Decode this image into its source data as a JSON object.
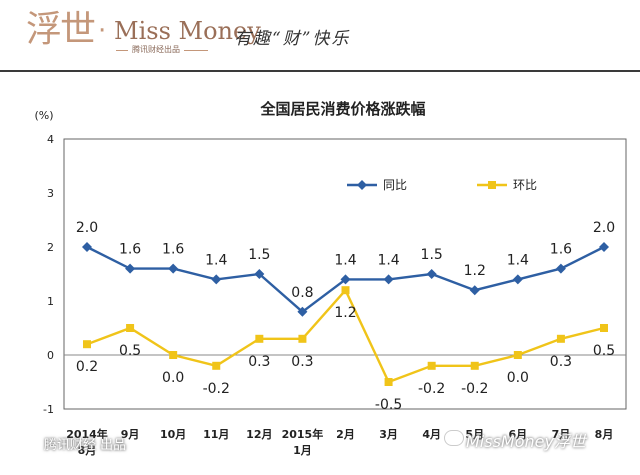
{
  "header": {
    "logo_cn": "浮世",
    "logo_dot": "·",
    "logo_en": "Miss Money",
    "logo_sub": "腾讯财经出品",
    "slogan": "有趣“财”快乐"
  },
  "chart_data": {
    "type": "line",
    "title": "全国居民消费价格涨跌幅",
    "ylabel": "(%)",
    "ylim": [
      -1,
      4
    ],
    "yticks": [
      4,
      3,
      2,
      1,
      0,
      -1
    ],
    "categories": [
      {
        "top": "2014年",
        "bottom": "8月"
      },
      {
        "top": "9月",
        "bottom": ""
      },
      {
        "top": "10月",
        "bottom": ""
      },
      {
        "top": "11月",
        "bottom": ""
      },
      {
        "top": "12月",
        "bottom": ""
      },
      {
        "top": "2015年",
        "bottom": "1月"
      },
      {
        "top": "2月",
        "bottom": ""
      },
      {
        "top": "3月",
        "bottom": ""
      },
      {
        "top": "4月",
        "bottom": ""
      },
      {
        "top": "5月",
        "bottom": ""
      },
      {
        "top": "6月",
        "bottom": ""
      },
      {
        "top": "7月",
        "bottom": ""
      },
      {
        "top": "8月",
        "bottom": ""
      }
    ],
    "series": [
      {
        "name": "同比",
        "color": "#2e5fa3",
        "marker": "diamond",
        "values": [
          2.0,
          1.6,
          1.6,
          1.4,
          1.5,
          0.8,
          1.4,
          1.4,
          1.5,
          1.2,
          1.4,
          1.6,
          2.0
        ],
        "labels": [
          "2.0",
          "1.6",
          "1.6",
          "1.4",
          "1.5",
          "0.8",
          "1.4",
          "1.4",
          "1.5",
          "1.2",
          "1.4",
          "1.6",
          "2.0"
        ]
      },
      {
        "name": "环比",
        "color": "#f0c419",
        "marker": "square",
        "values": [
          0.2,
          0.5,
          0.0,
          -0.2,
          0.3,
          0.3,
          1.2,
          -0.5,
          -0.2,
          -0.2,
          0.0,
          0.3,
          0.5
        ],
        "labels": [
          "0.2",
          "0.5",
          "0.0",
          "-0.2",
          "0.3",
          "0.3",
          "1.2",
          "-0.5",
          "-0.2",
          "-0.2",
          "0.0",
          "0.3",
          "0.5"
        ]
      }
    ],
    "legend_position": "top-right"
  },
  "watermarks": {
    "left": "腾讯财经 出品",
    "right": "MissMoney浮世"
  }
}
